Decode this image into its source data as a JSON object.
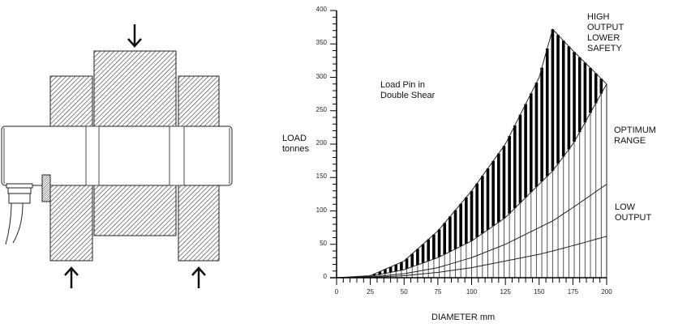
{
  "diagram": {
    "title": "Load Pin in Double Shear diagram",
    "arrows": [
      "down-arrow-center",
      "up-arrow-left",
      "up-arrow-right"
    ]
  },
  "chart_data": {
    "type": "area",
    "title": "",
    "annotation_title": "Load Pin in\nDouble Shear",
    "xlabel": "DIAMETER mm",
    "ylabel": "LOAD\ntonnes",
    "xlim": [
      0,
      200
    ],
    "ylim": [
      0,
      400
    ],
    "x_ticks": [
      0,
      25,
      50,
      75,
      100,
      125,
      150,
      175,
      200
    ],
    "y_ticks": [
      0,
      50,
      100,
      150,
      200,
      250,
      300,
      350,
      400
    ],
    "x": [
      0,
      25,
      50,
      75,
      100,
      125,
      150,
      160,
      175,
      200
    ],
    "series": [
      {
        "name": "Upper limit (high output)",
        "values": [
          0,
          3,
          25,
          70,
          130,
          200,
          300,
          372,
          340,
          290
        ]
      },
      {
        "name": "Optimum range lower boundary",
        "values": [
          0,
          2,
          12,
          30,
          55,
          90,
          140,
          160,
          200,
          290
        ]
      },
      {
        "name": "Low output upper curve",
        "values": [
          0,
          1,
          6,
          15,
          30,
          50,
          75,
          85,
          105,
          140
        ]
      },
      {
        "name": "Low output lower curve",
        "values": [
          0,
          0.5,
          3,
          8,
          15,
          25,
          35,
          40,
          48,
          62
        ]
      }
    ],
    "regions": [
      {
        "label": "HIGH\nOUTPUT\nLOWER\nSAFETY",
        "fill": "black vertical hatch"
      },
      {
        "label": "OPTIMUM\nRANGE",
        "fill": "vertical lines"
      },
      {
        "label": "LOW\nOUTPUT",
        "fill": "vertical lines"
      }
    ],
    "grid": false
  },
  "labels": {
    "annotation": "Load Pin in\nDouble Shear",
    "ylabel": "LOAD\ntonnes",
    "xlabel": "DIAMETER mm",
    "high": "HIGH\nOUTPUT\nLOWER\nSAFETY",
    "optimum": "OPTIMUM\nRANGE",
    "low": "LOW\nOUTPUT"
  }
}
